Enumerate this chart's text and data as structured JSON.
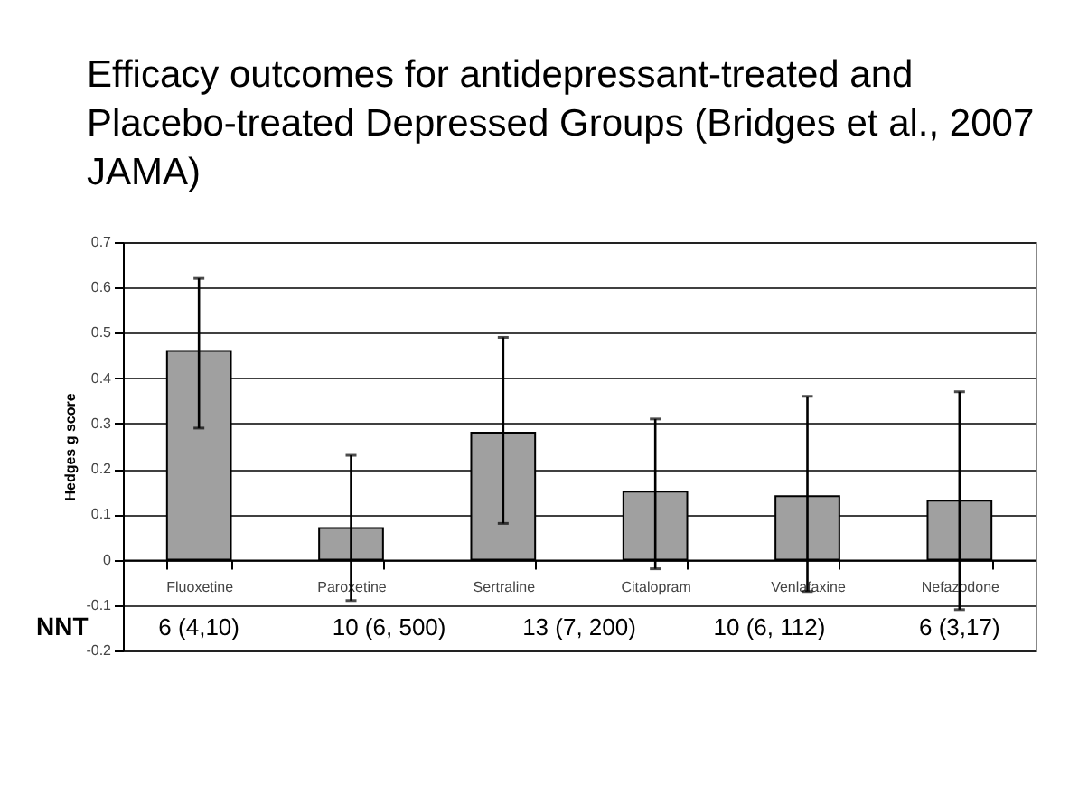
{
  "chart_data": {
    "type": "bar",
    "title": "Efficacy outcomes for antidepressant-treated and Placebo-treated Depressed Groups (Bridges et al., 2007 JAMA)",
    "ylabel": "Hedges g score",
    "categories": [
      "Fluoxetine",
      "Paroxetine",
      "Sertraline",
      "Citalopram",
      "Venlafaxine",
      "Nefazodone"
    ],
    "values": [
      0.46,
      0.07,
      0.28,
      0.15,
      0.14,
      0.13
    ],
    "errors": [
      [
        0.29,
        0.62
      ],
      [
        -0.09,
        0.23
      ],
      [
        0.08,
        0.49
      ],
      [
        -0.02,
        0.31
      ],
      [
        -0.07,
        0.36
      ],
      [
        -0.11,
        0.37
      ]
    ],
    "color": "#a0a0a0",
    "ylim": [
      -0.2,
      0.7
    ],
    "yticks": [
      -0.2,
      -0.1,
      0,
      0.1,
      0.2,
      0.3,
      0.4,
      0.5,
      0.6,
      0.7
    ],
    "grid": "y",
    "annotations": [
      "NNT",
      "6 (4,10)",
      "10 (6, 500)",
      "13 (7, 200)",
      "10 (6, 112)",
      "6 (3,17)"
    ]
  }
}
